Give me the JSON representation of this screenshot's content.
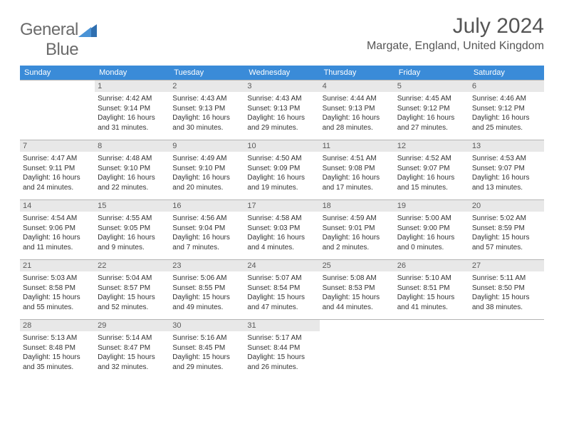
{
  "logo": {
    "textGray": "General",
    "textBlue": "Blue"
  },
  "title": "July 2024",
  "location": "Margate, England, United Kingdom",
  "colors": {
    "headerBg": "#3a8bd8",
    "headerText": "#ffffff",
    "dayNumBg": "#e8e8e8",
    "cellBorder": "#b5b5b5",
    "bodyText": "#333333",
    "titleText": "#555555",
    "logoGray": "#6b6b6b",
    "logoBlue": "#3a7fc4"
  },
  "days": [
    "Sunday",
    "Monday",
    "Tuesday",
    "Wednesday",
    "Thursday",
    "Friday",
    "Saturday"
  ],
  "weeks": [
    [
      null,
      {
        "n": "1",
        "sr": "4:42 AM",
        "ss": "9:14 PM",
        "dl": "16 hours and 31 minutes."
      },
      {
        "n": "2",
        "sr": "4:43 AM",
        "ss": "9:13 PM",
        "dl": "16 hours and 30 minutes."
      },
      {
        "n": "3",
        "sr": "4:43 AM",
        "ss": "9:13 PM",
        "dl": "16 hours and 29 minutes."
      },
      {
        "n": "4",
        "sr": "4:44 AM",
        "ss": "9:13 PM",
        "dl": "16 hours and 28 minutes."
      },
      {
        "n": "5",
        "sr": "4:45 AM",
        "ss": "9:12 PM",
        "dl": "16 hours and 27 minutes."
      },
      {
        "n": "6",
        "sr": "4:46 AM",
        "ss": "9:12 PM",
        "dl": "16 hours and 25 minutes."
      }
    ],
    [
      {
        "n": "7",
        "sr": "4:47 AM",
        "ss": "9:11 PM",
        "dl": "16 hours and 24 minutes."
      },
      {
        "n": "8",
        "sr": "4:48 AM",
        "ss": "9:10 PM",
        "dl": "16 hours and 22 minutes."
      },
      {
        "n": "9",
        "sr": "4:49 AM",
        "ss": "9:10 PM",
        "dl": "16 hours and 20 minutes."
      },
      {
        "n": "10",
        "sr": "4:50 AM",
        "ss": "9:09 PM",
        "dl": "16 hours and 19 minutes."
      },
      {
        "n": "11",
        "sr": "4:51 AM",
        "ss": "9:08 PM",
        "dl": "16 hours and 17 minutes."
      },
      {
        "n": "12",
        "sr": "4:52 AM",
        "ss": "9:07 PM",
        "dl": "16 hours and 15 minutes."
      },
      {
        "n": "13",
        "sr": "4:53 AM",
        "ss": "9:07 PM",
        "dl": "16 hours and 13 minutes."
      }
    ],
    [
      {
        "n": "14",
        "sr": "4:54 AM",
        "ss": "9:06 PM",
        "dl": "16 hours and 11 minutes."
      },
      {
        "n": "15",
        "sr": "4:55 AM",
        "ss": "9:05 PM",
        "dl": "16 hours and 9 minutes."
      },
      {
        "n": "16",
        "sr": "4:56 AM",
        "ss": "9:04 PM",
        "dl": "16 hours and 7 minutes."
      },
      {
        "n": "17",
        "sr": "4:58 AM",
        "ss": "9:03 PM",
        "dl": "16 hours and 4 minutes."
      },
      {
        "n": "18",
        "sr": "4:59 AM",
        "ss": "9:01 PM",
        "dl": "16 hours and 2 minutes."
      },
      {
        "n": "19",
        "sr": "5:00 AM",
        "ss": "9:00 PM",
        "dl": "16 hours and 0 minutes."
      },
      {
        "n": "20",
        "sr": "5:02 AM",
        "ss": "8:59 PM",
        "dl": "15 hours and 57 minutes."
      }
    ],
    [
      {
        "n": "21",
        "sr": "5:03 AM",
        "ss": "8:58 PM",
        "dl": "15 hours and 55 minutes."
      },
      {
        "n": "22",
        "sr": "5:04 AM",
        "ss": "8:57 PM",
        "dl": "15 hours and 52 minutes."
      },
      {
        "n": "23",
        "sr": "5:06 AM",
        "ss": "8:55 PM",
        "dl": "15 hours and 49 minutes."
      },
      {
        "n": "24",
        "sr": "5:07 AM",
        "ss": "8:54 PM",
        "dl": "15 hours and 47 minutes."
      },
      {
        "n": "25",
        "sr": "5:08 AM",
        "ss": "8:53 PM",
        "dl": "15 hours and 44 minutes."
      },
      {
        "n": "26",
        "sr": "5:10 AM",
        "ss": "8:51 PM",
        "dl": "15 hours and 41 minutes."
      },
      {
        "n": "27",
        "sr": "5:11 AM",
        "ss": "8:50 PM",
        "dl": "15 hours and 38 minutes."
      }
    ],
    [
      {
        "n": "28",
        "sr": "5:13 AM",
        "ss": "8:48 PM",
        "dl": "15 hours and 35 minutes."
      },
      {
        "n": "29",
        "sr": "5:14 AM",
        "ss": "8:47 PM",
        "dl": "15 hours and 32 minutes."
      },
      {
        "n": "30",
        "sr": "5:16 AM",
        "ss": "8:45 PM",
        "dl": "15 hours and 29 minutes."
      },
      {
        "n": "31",
        "sr": "5:17 AM",
        "ss": "8:44 PM",
        "dl": "15 hours and 26 minutes."
      },
      null,
      null,
      null
    ]
  ],
  "labels": {
    "sunrise": "Sunrise: ",
    "sunset": "Sunset: ",
    "daylight": "Daylight: "
  }
}
